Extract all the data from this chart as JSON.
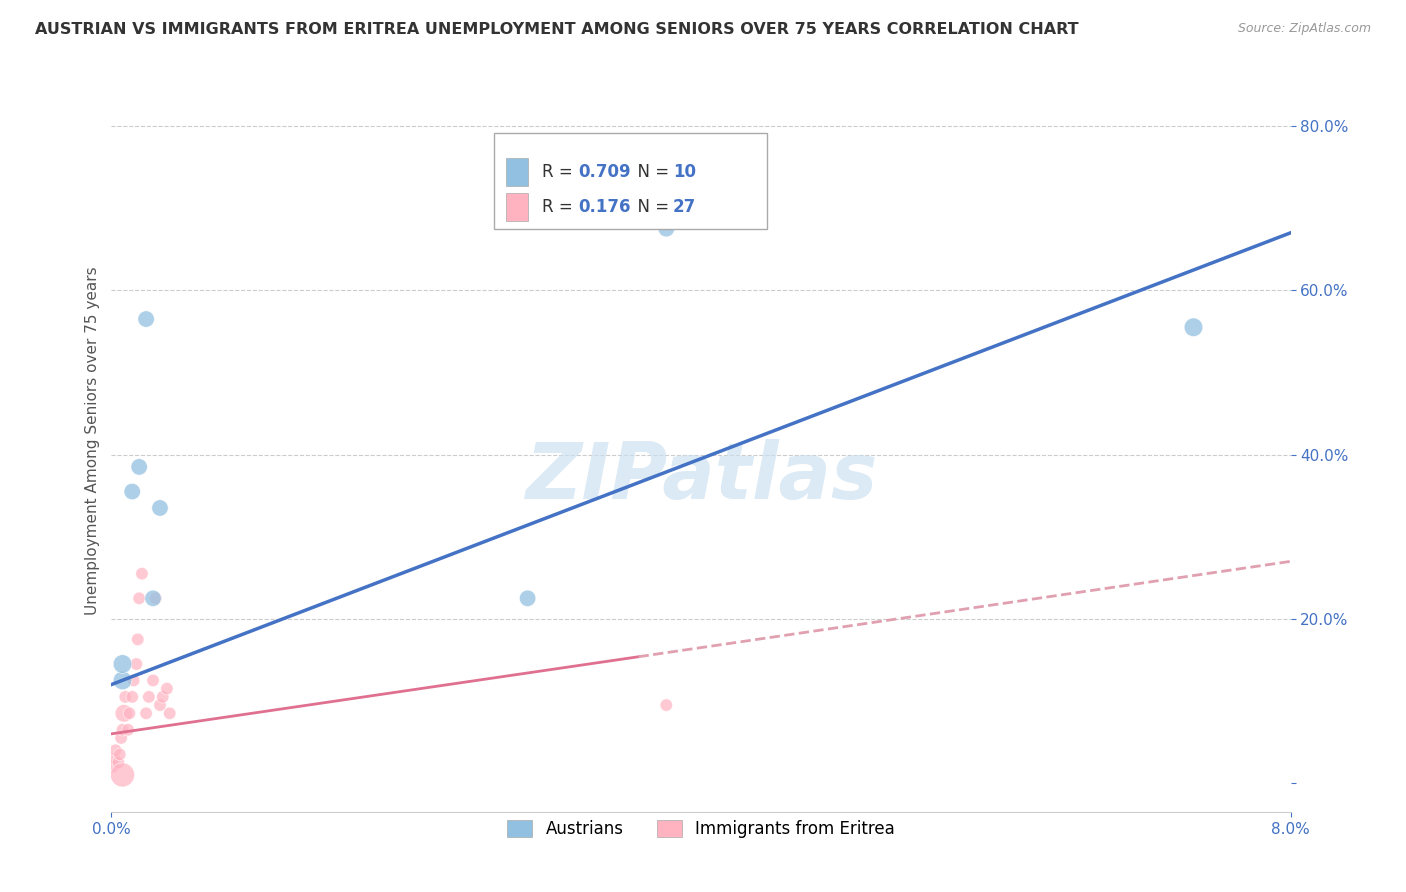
{
  "title": "AUSTRIAN VS IMMIGRANTS FROM ERITREA UNEMPLOYMENT AMONG SENIORS OVER 75 YEARS CORRELATION CHART",
  "source": "Source: ZipAtlas.com",
  "ylabel": "Unemployment Among Seniors over 75 years",
  "legend_austrians": "Austrians",
  "legend_eritrea": "Immigrants from Eritrea",
  "r_austrians": "0.709",
  "n_austrians": "10",
  "r_eritrea": "0.176",
  "n_eritrea": "27",
  "blue_color": "#92C0E0",
  "pink_color": "#FFB3C1",
  "blue_line_color": "#4472C4",
  "pink_line_color": "#E07090",
  "pink_dashed_color": "#E0A0B0",
  "watermark": "ZIPatlas",
  "austrians_x": [
    0.0008,
    0.0008,
    0.0015,
    0.002,
    0.0025,
    0.003,
    0.0035,
    0.03,
    0.04,
    0.078
  ],
  "austrians_y": [
    0.125,
    0.145,
    0.355,
    0.385,
    0.565,
    0.225,
    0.335,
    0.225,
    0.675,
    0.555
  ],
  "austrians_size": [
    180,
    180,
    140,
    140,
    140,
    140,
    140,
    140,
    140,
    180
  ],
  "eritrea_x": [
    0.0001,
    0.0002,
    0.0003,
    0.0005,
    0.0006,
    0.0007,
    0.0008,
    0.0009,
    0.001,
    0.0012,
    0.0013,
    0.0015,
    0.0016,
    0.0018,
    0.0019,
    0.002,
    0.0022,
    0.0025,
    0.0027,
    0.003,
    0.0032,
    0.0035,
    0.0037,
    0.004,
    0.0042,
    0.04,
    0.0008
  ],
  "eritrea_y": [
    0.02,
    0.03,
    0.04,
    0.025,
    0.035,
    0.055,
    0.065,
    0.085,
    0.105,
    0.065,
    0.085,
    0.105,
    0.125,
    0.145,
    0.175,
    0.225,
    0.255,
    0.085,
    0.105,
    0.125,
    0.225,
    0.095,
    0.105,
    0.115,
    0.085,
    0.095,
    0.01
  ],
  "eritrea_size": [
    80,
    80,
    80,
    80,
    80,
    80,
    80,
    160,
    80,
    80,
    80,
    80,
    80,
    80,
    80,
    80,
    80,
    80,
    80,
    80,
    80,
    80,
    80,
    80,
    80,
    80,
    300
  ],
  "xmin": 0.0,
  "xmax": 0.085,
  "ymin": -0.035,
  "ymax": 0.87,
  "ytick_positions": [
    0.0,
    0.2,
    0.4,
    0.6,
    0.8
  ],
  "ytick_labels": [
    "",
    "20.0%",
    "40.0%",
    "60.0%",
    "80.0%"
  ]
}
